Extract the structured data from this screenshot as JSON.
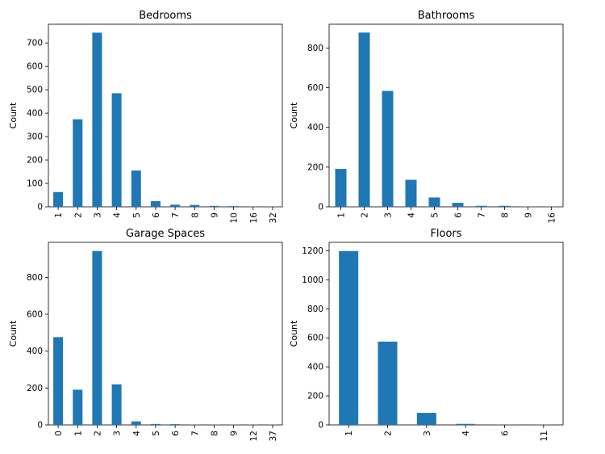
{
  "chart_data": [
    {
      "type": "bar",
      "title": "Bedrooms",
      "xlabel": "",
      "ylabel": "Count",
      "categories": [
        "1",
        "2",
        "3",
        "4",
        "5",
        "6",
        "7",
        "8",
        "9",
        "10",
        "16",
        "32"
      ],
      "values": [
        63,
        374,
        744,
        485,
        155,
        24,
        9,
        8,
        4,
        3,
        1,
        1
      ],
      "ylim": [
        0,
        780
      ],
      "yticks": [
        0,
        100,
        200,
        300,
        400,
        500,
        600,
        700
      ],
      "bar_color": "#1f77b4",
      "grid": false
    },
    {
      "type": "bar",
      "title": "Bathrooms",
      "xlabel": "",
      "ylabel": "Count",
      "categories": [
        "1",
        "2",
        "3",
        "4",
        "5",
        "6",
        "7",
        "8",
        "9",
        "16"
      ],
      "values": [
        191,
        878,
        584,
        136,
        47,
        20,
        5,
        5,
        1,
        1
      ],
      "ylim": [
        0,
        920
      ],
      "yticks": [
        0,
        200,
        400,
        600,
        800
      ],
      "bar_color": "#1f77b4",
      "grid": false
    },
    {
      "type": "bar",
      "title": "Garage Spaces",
      "xlabel": "",
      "ylabel": "Count",
      "categories": [
        "0",
        "1",
        "2",
        "3",
        "4",
        "5",
        "6",
        "7",
        "8",
        "9",
        "12",
        "37"
      ],
      "values": [
        476,
        191,
        943,
        220,
        19,
        5,
        4,
        1,
        1,
        1,
        1,
        1
      ],
      "ylim": [
        0,
        990
      ],
      "yticks": [
        0,
        200,
        400,
        600,
        800
      ],
      "bar_color": "#1f77b4",
      "grid": false
    },
    {
      "type": "bar",
      "title": "Floors",
      "xlabel": "",
      "ylabel": "Count",
      "categories": [
        "1",
        "2",
        "3",
        "4",
        "6",
        "11"
      ],
      "values": [
        1198,
        574,
        83,
        7,
        1,
        1
      ],
      "ylim": [
        0,
        1258
      ],
      "yticks": [
        0,
        200,
        400,
        600,
        800,
        1000,
        1200
      ],
      "bar_color": "#1f77b4",
      "grid": false
    }
  ]
}
